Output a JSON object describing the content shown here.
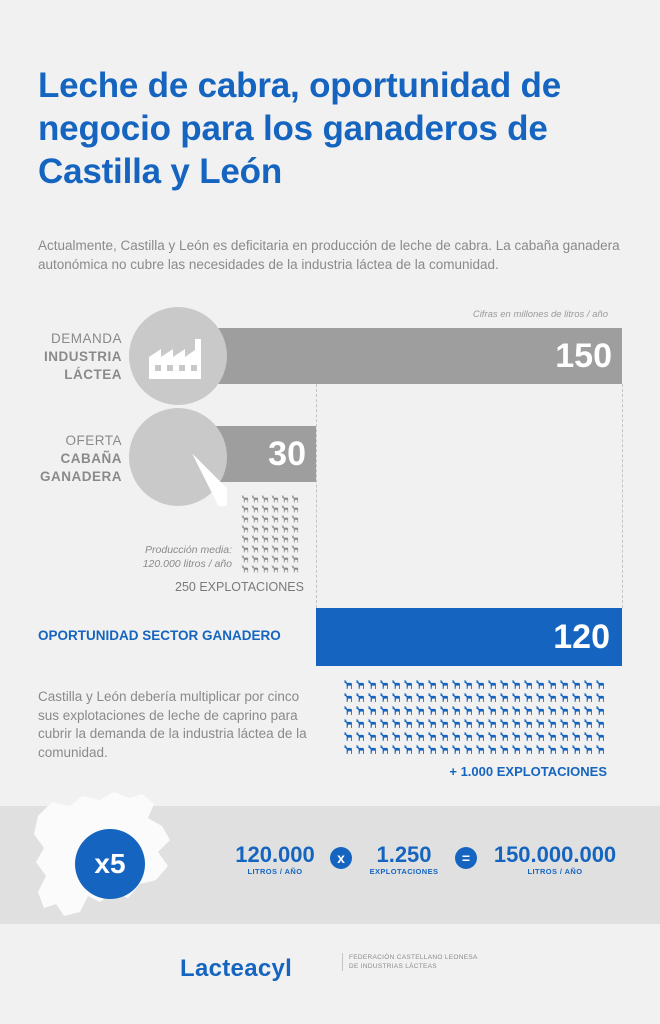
{
  "title": "Leche de cabra, oportunidad de negocio para los ganaderos de Castilla y León",
  "intro": "Actualmente, Castilla y León es deficitaria en producción de leche de cabra. La cabaña ganadera autonómica no cubre las necesidades de la industria láctea de la comunidad.",
  "note": "Cifras en millones de litros / año",
  "chart_data": {
    "type": "bar",
    "title": "",
    "unit": "Cifras en millones de litros / año",
    "categories": [
      "DEMANDA INDUSTRIA LÁCTEA",
      "OFERTA CABAÑA GANADERA",
      "OPORTUNIDAD SECTOR GANADERO"
    ],
    "values": [
      150,
      30,
      120
    ],
    "colors": [
      "#9e9e9e",
      "#9e9e9e",
      "#1565c0"
    ],
    "grid": false,
    "legend": "none"
  },
  "demand": {
    "line1": "DEMANDA",
    "line2": "INDUSTRIA",
    "line3": "LÁCTEA",
    "value": "150",
    "icon": "factory-icon"
  },
  "supply": {
    "line1": "OFERTA",
    "line2": "CABAÑA",
    "line3": "GANADERA",
    "value": "30",
    "icon": "goat-icon"
  },
  "production": {
    "line1": "Producción media:",
    "line2": "120.000 litros / año"
  },
  "farms_current": "250 EXPLOTACIONES",
  "opportunity": {
    "label": "OPORTUNIDAD SECTOR GANADERO",
    "value": "120"
  },
  "farms_needed": "+ 1.000 EXPLOTACIONES",
  "paragraph": "Castilla y León debería multiplicar por cinco sus explotaciones de leche de caprino para cubrir la demanda de la industria láctea de la comunidad.",
  "equation": {
    "multiplier": "x5",
    "a": "120.000",
    "a_unit": "LITROS / AÑO",
    "op1": "x",
    "b": "1.250",
    "b_unit": "EXPLOTACIONES",
    "op2": "=",
    "c": "150.000.000",
    "c_unit": "LITROS / AÑO"
  },
  "brand": {
    "logo": "Lacteacyl",
    "line1": "FEDERACIÓN CASTELLANO LEONESA",
    "line2": "DE INDUSTRIAS LÁCTEAS"
  },
  "colors": {
    "blue": "#1565c0",
    "gray_bar": "#9e9e9e",
    "circle": "#c9c9c9",
    "text_gray": "#8a8a8a"
  }
}
